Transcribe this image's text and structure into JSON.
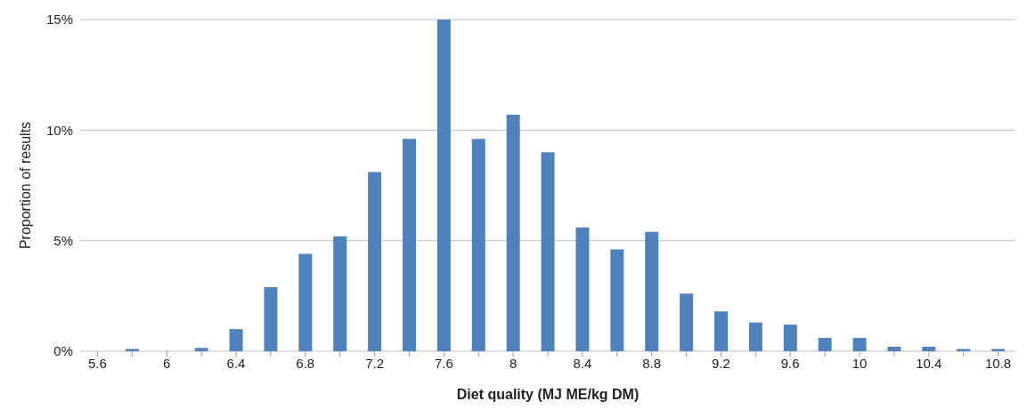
{
  "chart_data": {
    "type": "bar",
    "xlabel": "Diet quality (MJ ME/kg DM)",
    "ylabel": "Proportion of results",
    "categories": [
      "5.6",
      null,
      "6",
      null,
      "6.4",
      null,
      "6.8",
      null,
      "7.2",
      null,
      "7.6",
      null,
      "8",
      null,
      "8.4",
      null,
      "8.8",
      null,
      "9.2",
      null,
      "9.6",
      null,
      "10",
      null,
      "10.4",
      null,
      "10.8"
    ],
    "values": [
      0,
      0.1,
      0,
      0.15,
      1.0,
      2.9,
      4.4,
      5.2,
      8.1,
      9.6,
      15,
      9.6,
      10.7,
      9.0,
      5.6,
      4.6,
      5.4,
      2.6,
      1.8,
      1.3,
      1.2,
      0.6,
      0.6,
      0.2,
      0.2,
      0.1,
      0.1
    ],
    "color": "#4f81bd",
    "ylim": [
      0,
      15
    ],
    "yticks": [
      {
        "value": 0,
        "label": "0%"
      },
      {
        "value": 5,
        "label": "5%"
      },
      {
        "value": 10,
        "label": "10%"
      },
      {
        "value": 15,
        "label": "15%"
      }
    ],
    "grid": "y",
    "legend": false
  }
}
